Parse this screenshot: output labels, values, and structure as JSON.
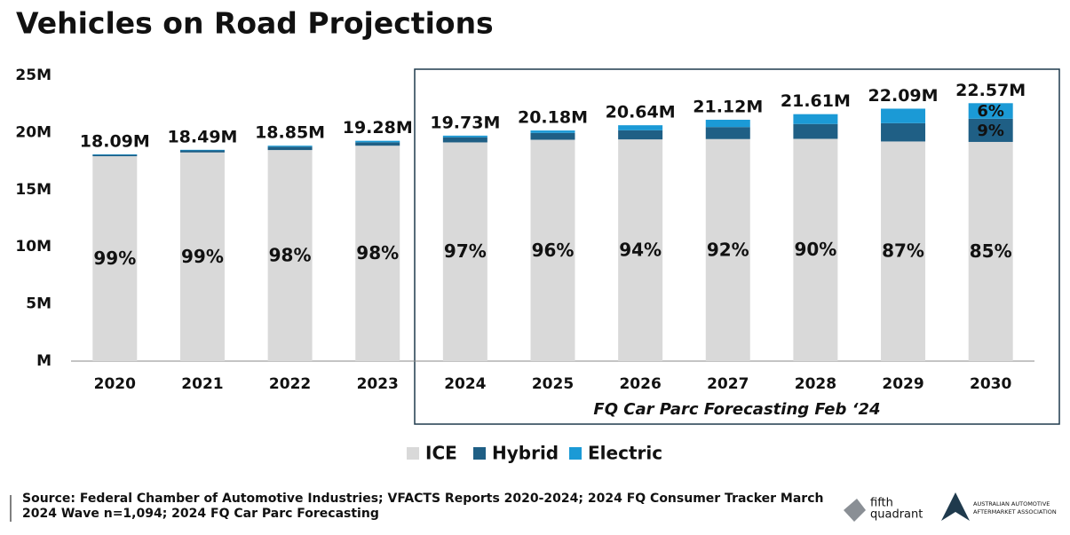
{
  "chart_data": {
    "type": "stacked_bar",
    "title": "Vehicles on Road Projections",
    "categories": [
      "2020",
      "2021",
      "2022",
      "2023",
      "2024",
      "2025",
      "2026",
      "2027",
      "2028",
      "2029",
      "2030"
    ],
    "series": [
      {
        "name": "ICE",
        "color": "#d9d9d9",
        "text_color": "#111111",
        "values": [
          17.93,
          18.26,
          18.47,
          18.85,
          19.14,
          19.37,
          19.4,
          19.43,
          19.45,
          19.22,
          19.18
        ],
        "share_labels": [
          "99%",
          "99%",
          "98%",
          "98%",
          "97%",
          "96%",
          "94%",
          "92%",
          "90%",
          "87%",
          "85%"
        ]
      },
      {
        "name": "Hybrid",
        "color": "#1f5f85",
        "text_color": "#ffffff",
        "values": [
          0.12,
          0.18,
          0.29,
          0.3,
          0.45,
          0.6,
          0.8,
          1.05,
          1.3,
          1.6,
          2.03
        ],
        "share_labels": [
          null,
          null,
          null,
          null,
          null,
          null,
          null,
          null,
          null,
          null,
          "9%"
        ]
      },
      {
        "name": "Electric",
        "color": "#1b9ad6",
        "text_color": "#ffffff",
        "values": [
          0.04,
          0.05,
          0.09,
          0.13,
          0.14,
          0.21,
          0.44,
          0.64,
          0.86,
          1.27,
          1.36
        ],
        "share_labels": [
          null,
          null,
          null,
          null,
          null,
          null,
          null,
          null,
          null,
          null,
          "6%"
        ]
      }
    ],
    "totals": {
      "values": [
        18.09,
        18.49,
        18.85,
        19.28,
        19.73,
        20.18,
        20.64,
        21.12,
        21.61,
        22.09,
        22.57
      ],
      "value_labels": [
        "18.09M",
        "18.49M",
        "18.85M",
        "19.28M",
        "19.73M",
        "20.18M",
        "20.64M",
        "21.12M",
        "21.61M",
        "22.09M",
        "22.57M"
      ]
    },
    "ylim": [
      0,
      25
    ],
    "yticks": [
      {
        "value": 0,
        "label": "M"
      },
      {
        "value": 5,
        "label": "5M"
      },
      {
        "value": 10,
        "label": "10M"
      },
      {
        "value": 15,
        "label": "15M"
      },
      {
        "value": 20,
        "label": "20M"
      },
      {
        "value": 25,
        "label": "25M"
      }
    ],
    "annotation": "FQ Car Parc Forecasting Feb ‘24",
    "legend": "bottom",
    "source": [
      "Source: Federal Chamber of Automotive Industries; VFACTS Reports 2020-2024; 2024 FQ Consumer Tracker March",
      "2024 Wave n=1,094; 2024 FQ Car Parc Forecasting"
    ],
    "logos": [
      "fifth",
      "quadrant",
      "AUSTRALIAN AUTOMOTIVE",
      "AFTERMARKET ASSOCIATION"
    ]
  }
}
